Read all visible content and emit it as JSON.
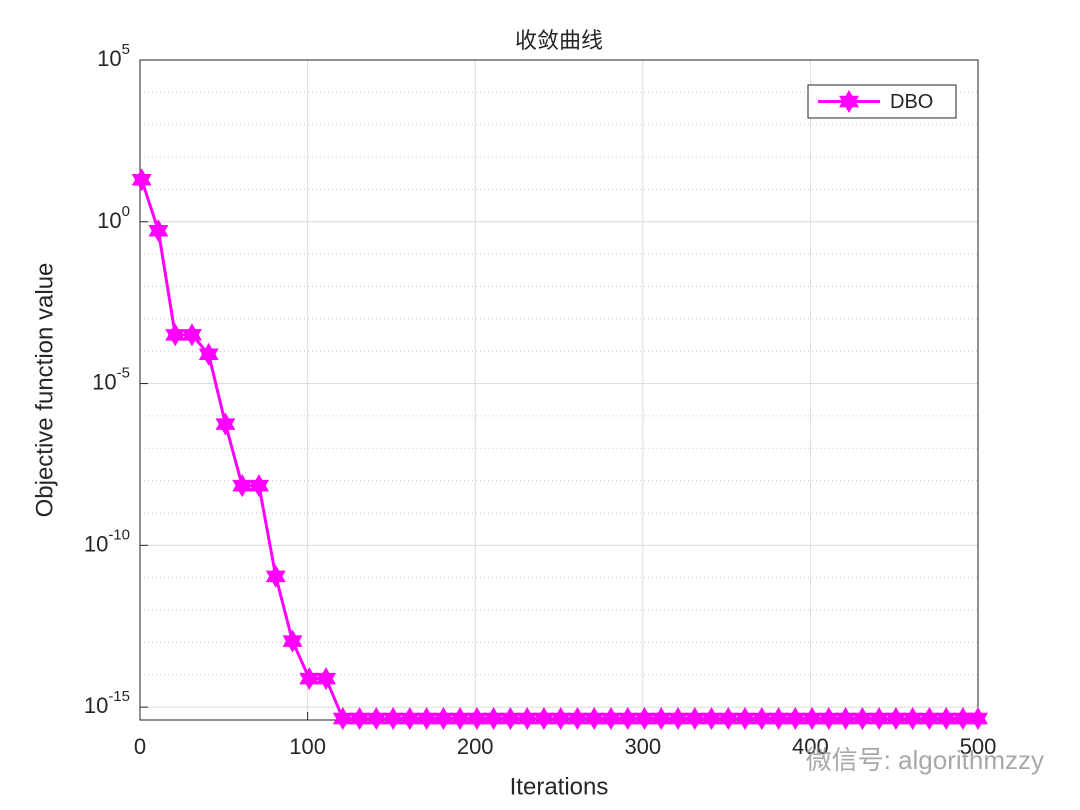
{
  "chart_data": {
    "type": "line",
    "title": "收敛曲线",
    "xlabel": "Iterations",
    "ylabel": "Objective function value",
    "x": [
      1,
      11,
      21,
      31,
      41,
      51,
      61,
      71,
      81,
      91,
      101,
      111,
      121,
      131,
      141,
      151,
      161,
      171,
      181,
      191,
      201,
      211,
      221,
      231,
      241,
      251,
      261,
      271,
      281,
      291,
      301,
      311,
      321,
      331,
      341,
      351,
      361,
      371,
      381,
      391,
      401,
      411,
      421,
      431,
      441,
      451,
      461,
      471,
      481,
      491,
      500
    ],
    "series": [
      {
        "name": "DBO",
        "color": "#ff00ff",
        "marker": "hexagram",
        "values": [
          20,
          0.53,
          0.00032,
          0.00032,
          8e-05,
          5.6e-07,
          7e-09,
          7e-09,
          1.1e-11,
          1.1e-13,
          7.6e-15,
          7.6e-15,
          4.44e-16,
          4.44e-16,
          4.44e-16,
          4.44e-16,
          4.44e-16,
          4.44e-16,
          4.44e-16,
          4.44e-16,
          4.44e-16,
          4.44e-16,
          4.44e-16,
          4.44e-16,
          4.44e-16,
          4.44e-16,
          4.44e-16,
          4.44e-16,
          4.44e-16,
          4.44e-16,
          4.44e-16,
          4.44e-16,
          4.44e-16,
          4.44e-16,
          4.44e-16,
          4.44e-16,
          4.44e-16,
          4.44e-16,
          4.44e-16,
          4.44e-16,
          4.44e-16,
          4.44e-16,
          4.44e-16,
          4.44e-16,
          4.44e-16,
          4.44e-16,
          4.44e-16,
          4.44e-16,
          4.44e-16,
          4.44e-16,
          4.44e-16
        ]
      }
    ],
    "xlim": [
      0,
      500
    ],
    "xticks": [
      0,
      100,
      200,
      300,
      400,
      500
    ],
    "ylim": [
      4e-16,
      100000
    ],
    "yscale": "log",
    "yticks": [
      {
        "value": 1e-15,
        "label": "10^-15"
      },
      {
        "value": 1e-10,
        "label": "10^-10"
      },
      {
        "value": 1e-05,
        "label": "10^-5"
      },
      {
        "value": 1,
        "label": "10^0"
      },
      {
        "value": 100000,
        "label": "10^5"
      }
    ],
    "grid": true,
    "minor_grid": true,
    "legend": "northeast",
    "watermark": "微信号: algorithmzzy"
  }
}
